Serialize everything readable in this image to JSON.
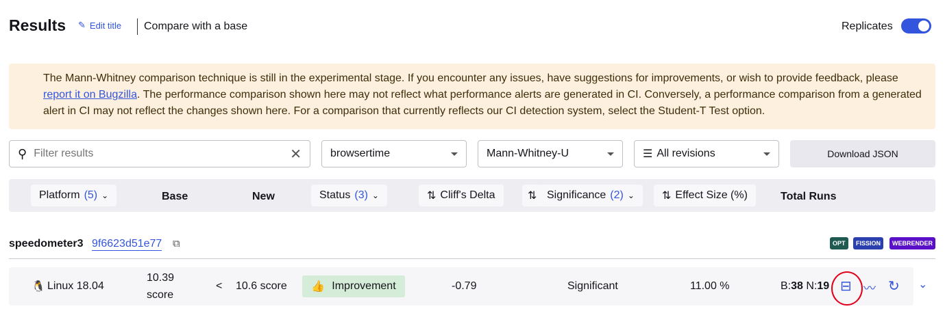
{
  "header": {
    "title": "Results",
    "edit_title": "Edit title",
    "compare": "Compare with a base",
    "replicates": "Replicates",
    "replicates_on": true
  },
  "warning": {
    "text1": "The Mann-Whitney comparison technique is still in the experimental stage. If you encounter any issues, have suggestions for improvements, or wish to provide feedback, please ",
    "link": "report it on Bugzilla",
    "text2": ". The performance comparison shown here may not reflect what performance alerts are generated in CI. Conversely, a performance comparison from a generated alert in CI may not reflect the changes shown here. For a comparison that currently reflects our CI detection system, select the Student-T Test option."
  },
  "filters": {
    "search_placeholder": "Filter results",
    "framework": "browsertime",
    "test": "Mann-Whitney-U",
    "revisions": "All revisions",
    "download": "Download JSON"
  },
  "columns": {
    "platform": "Platform",
    "platform_count": "(5)",
    "base": "Base",
    "new": "New",
    "status": "Status",
    "status_count": "(3)",
    "cliffs": "Cliff's Delta",
    "significance": "Significance",
    "significance_count": "(2)",
    "effect": "Effect Size (%)",
    "total": "Total Runs"
  },
  "test": {
    "name": "speedometer3",
    "hash": "9f6623d51e77",
    "badges": [
      {
        "label": "OPT",
        "color": "#1e5a50"
      },
      {
        "label": "FISSION",
        "color": "#2b3fae"
      },
      {
        "label": "WEBRENDER",
        "color": "#5a10c8"
      }
    ]
  },
  "row": {
    "platform": "Linux 18.04",
    "base_value": "10.39",
    "base_unit": "score",
    "comparator": "<",
    "new": "10.6 score",
    "status": "Improvement",
    "cliffs": "-0.79",
    "significance": "Significant",
    "effect": "11.00 %",
    "b_label": "B:",
    "b": "38",
    "n_label": "N:",
    "n": "19"
  }
}
